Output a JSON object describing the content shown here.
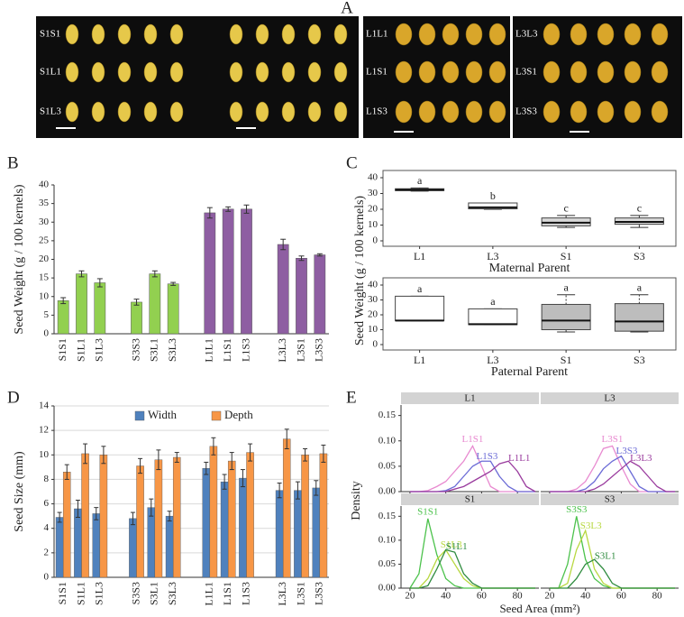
{
  "panels": [
    "A",
    "B",
    "C",
    "D",
    "E"
  ],
  "photo_labels": [
    "S1S1",
    "S1L1",
    "S1L3",
    "L1L1",
    "L1S1",
    "L1S3",
    "L3L3",
    "L3S1",
    "L3S3"
  ],
  "chart_data": [
    {
      "type": "bar",
      "ylabel": "Seed Weight (g / 100 kernels)",
      "categories": [
        "S1S1",
        "S1L1",
        "S1L3",
        null,
        "S3S3",
        "S3L1",
        "S3L3",
        null,
        "L1L1",
        "L1S1",
        "L1S3",
        null,
        "L3L3",
        "L3S1",
        "L3S3"
      ],
      "values": [
        8.9,
        16.1,
        13.7,
        null,
        8.5,
        16.1,
        13.4,
        null,
        32.5,
        33.5,
        33.5,
        null,
        24,
        20.3,
        21.2
      ],
      "errors": [
        0.8,
        0.8,
        1.1,
        null,
        0.8,
        0.8,
        0.4,
        null,
        1.4,
        0.6,
        1.1,
        null,
        1.4,
        0.6,
        0.3
      ],
      "colors": [
        "#92d050",
        "#92d050",
        "#92d050",
        null,
        "#92d050",
        "#92d050",
        "#92d050",
        null,
        "#8e5ea2",
        "#8e5ea2",
        "#8e5ea2",
        null,
        "#8e5ea2",
        "#8e5ea2",
        "#8e5ea2"
      ],
      "ylim": [
        0,
        40
      ],
      "yticks": [
        0,
        5,
        10,
        15,
        20,
        25,
        30,
        35,
        40
      ]
    },
    {
      "type": "box",
      "ylabel": "Seed Weight (g / 100 kernels)",
      "xlabel": "Maternal Parent",
      "categories": [
        "L1",
        "L3",
        "S1",
        "S3"
      ],
      "letters": [
        "a",
        "b",
        "c",
        "c"
      ],
      "boxes": [
        {
          "whisker_low": 31.5,
          "q1": 31.8,
          "median": 32.3,
          "q3": 33,
          "whisker_high": 33.5
        },
        {
          "whisker_low": 20,
          "q1": 20.3,
          "median": 21.2,
          "q3": 24,
          "whisker_high": 24
        },
        {
          "whisker_low": 8.5,
          "q1": 9.5,
          "median": 11.5,
          "q3": 14.5,
          "whisker_high": 16.1
        },
        {
          "whisker_low": 8.5,
          "q1": 10.5,
          "median": 12,
          "q3": 14.5,
          "whisker_high": 16.1
        }
      ],
      "box_colors": [
        "#ffffff",
        "#ffffff",
        "#d9d9d9",
        "#d9d9d9"
      ],
      "ylim": [
        0,
        40
      ],
      "yticks": [
        0,
        10,
        20,
        30,
        40
      ]
    },
    {
      "type": "box",
      "xlabel": "Paternal Parent",
      "categories": [
        "L1",
        "L3",
        "S1",
        "S3"
      ],
      "letters": [
        "a",
        "a",
        "a",
        "a"
      ],
      "boxes": [
        {
          "whisker_low": 16,
          "q1": 16,
          "median": 16.1,
          "q3": 32.5,
          "whisker_high": 32.5
        },
        {
          "whisker_low": 13.4,
          "q1": 13.4,
          "median": 13.7,
          "q3": 24,
          "whisker_high": 24
        },
        {
          "whisker_low": 8.5,
          "q1": 10,
          "median": 16.1,
          "q3": 27,
          "whisker_high": 33.5
        },
        {
          "whisker_low": 8.5,
          "q1": 9,
          "median": 15.5,
          "q3": 27.5,
          "whisker_high": 33.5
        }
      ],
      "box_colors": [
        "#ffffff",
        "#ffffff",
        "#bdbdbd",
        "#bdbdbd"
      ],
      "ylim": [
        0,
        40
      ],
      "yticks": [
        0,
        10,
        20,
        30,
        40
      ]
    },
    {
      "type": "grouped_bar",
      "ylabel": "Seed  Size (mm)",
      "legend": "top",
      "categories": [
        "S1S1",
        "S1L1",
        "S1L3",
        null,
        "S3S3",
        "S3L1",
        "S3L3",
        null,
        "L1L1",
        "L1S1",
        "L1S3",
        null,
        "L3L3",
        "L3S1",
        "L3S3"
      ],
      "series": [
        {
          "name": "Width",
          "color": "#4f81bd",
          "values": [
            4.9,
            5.6,
            5.2,
            null,
            4.8,
            5.7,
            5.0,
            null,
            8.9,
            7.8,
            8.1,
            null,
            7.1,
            7.1,
            7.3
          ],
          "errors": [
            0.4,
            0.7,
            0.5,
            null,
            0.5,
            0.7,
            0.4,
            null,
            0.5,
            0.6,
            0.7,
            null,
            0.6,
            0.7,
            0.6
          ]
        },
        {
          "name": "Depth",
          "color": "#f79646",
          "values": [
            8.6,
            10.1,
            10.0,
            null,
            9.1,
            9.6,
            9.8,
            null,
            10.7,
            9.5,
            10.2,
            null,
            11.3,
            10.0,
            10.1
          ],
          "errors": [
            0.6,
            0.8,
            0.7,
            null,
            0.6,
            0.8,
            0.4,
            null,
            0.7,
            0.7,
            0.7,
            null,
            0.8,
            0.5,
            0.7
          ]
        }
      ],
      "ylim": [
        0,
        14
      ],
      "yticks": [
        0,
        2,
        4,
        6,
        8,
        10,
        12,
        14
      ]
    },
    {
      "type": "density",
      "xlabel": "Seed Area (mm²)",
      "ylabel": "Density",
      "x": [
        20,
        25,
        30,
        35,
        40,
        45,
        50,
        55,
        60,
        65,
        70,
        75,
        80,
        85,
        90
      ],
      "xlim": [
        15,
        92
      ],
      "xticks": [
        20,
        40,
        60,
        80
      ],
      "ylim": [
        0,
        0.16
      ],
      "yticks": [
        {
          "value": 0,
          "label": "0.00"
        },
        0.05,
        {
          "value": 0.1,
          "label": "0.10"
        },
        {
          "value": 0.15,
          "label": "0.15"
        }
      ],
      "facets": [
        {
          "title": "L1",
          "series": [
            {
              "name": "L1S1",
              "color": "#e88ad0",
              "values": [
                0,
                0,
                0.002,
                0.01,
                0.02,
                0.04,
                0.06,
                0.09,
                0.05,
                0.01,
                0,
                0,
                0,
                0,
                0
              ]
            },
            {
              "name": "L1S3",
              "color": "#6b6bd6",
              "values": [
                0,
                0,
                0,
                0,
                0.002,
                0.01,
                0.03,
                0.05,
                0.06,
                0.06,
                0.03,
                0.01,
                0,
                0,
                0
              ]
            },
            {
              "name": "L1L1",
              "color": "#9a3c9e",
              "values": [
                0,
                0,
                0,
                0,
                0,
                0.005,
                0.01,
                0.02,
                0.03,
                0.04,
                0.055,
                0.06,
                0.04,
                0.01,
                0
              ]
            }
          ]
        },
        {
          "title": "L3",
          "series": [
            {
              "name": "L3S1",
              "color": "#e88ad0",
              "values": [
                0,
                0,
                0,
                0.005,
                0.02,
                0.05,
                0.085,
                0.09,
                0.05,
                0.015,
                0,
                0,
                0,
                0,
                0
              ]
            },
            {
              "name": "L3S3",
              "color": "#6b6bd6",
              "values": [
                0,
                0,
                0,
                0,
                0.005,
                0.02,
                0.045,
                0.06,
                0.07,
                0.04,
                0.01,
                0,
                0,
                0,
                0
              ]
            },
            {
              "name": "L3L3",
              "color": "#9a3c9e",
              "values": [
                0,
                0,
                0,
                0,
                0,
                0.005,
                0.015,
                0.03,
                0.045,
                0.06,
                0.05,
                0.03,
                0.01,
                0,
                0
              ]
            }
          ]
        },
        {
          "title": "S1",
          "series": [
            {
              "name": "S1S1",
              "color": "#4cc24c",
              "values": [
                0,
                0.03,
                0.145,
                0.07,
                0.02,
                0.005,
                0,
                0,
                0,
                0,
                0,
                0,
                0,
                0,
                0
              ]
            },
            {
              "name": "S1L3",
              "color": "#b8d840",
              "values": [
                0,
                0,
                0.02,
                0.06,
                0.08,
                0.05,
                0.02,
                0.005,
                0,
                0,
                0,
                0,
                0,
                0,
                0
              ]
            },
            {
              "name": "S1L1",
              "color": "#2e8b3e",
              "values": [
                0,
                0,
                0.005,
                0.04,
                0.08,
                0.075,
                0.03,
                0.01,
                0,
                0,
                0,
                0,
                0,
                0,
                0
              ]
            }
          ]
        },
        {
          "title": "S3",
          "series": [
            {
              "name": "S3S3",
              "color": "#4cc24c",
              "values": [
                0,
                0,
                0.05,
                0.15,
                0.06,
                0.02,
                0.005,
                0,
                0,
                0,
                0,
                0,
                0,
                0,
                0
              ]
            },
            {
              "name": "S3L3",
              "color": "#b8d840",
              "values": [
                0,
                0,
                0.01,
                0.08,
                0.12,
                0.04,
                0.01,
                0,
                0,
                0,
                0,
                0,
                0,
                0,
                0
              ]
            },
            {
              "name": "S3L1",
              "color": "#2e8b3e",
              "values": [
                0,
                0,
                0,
                0.02,
                0.05,
                0.06,
                0.04,
                0.01,
                0,
                0,
                0,
                0,
                0,
                0,
                0
              ]
            }
          ]
        }
      ]
    }
  ]
}
